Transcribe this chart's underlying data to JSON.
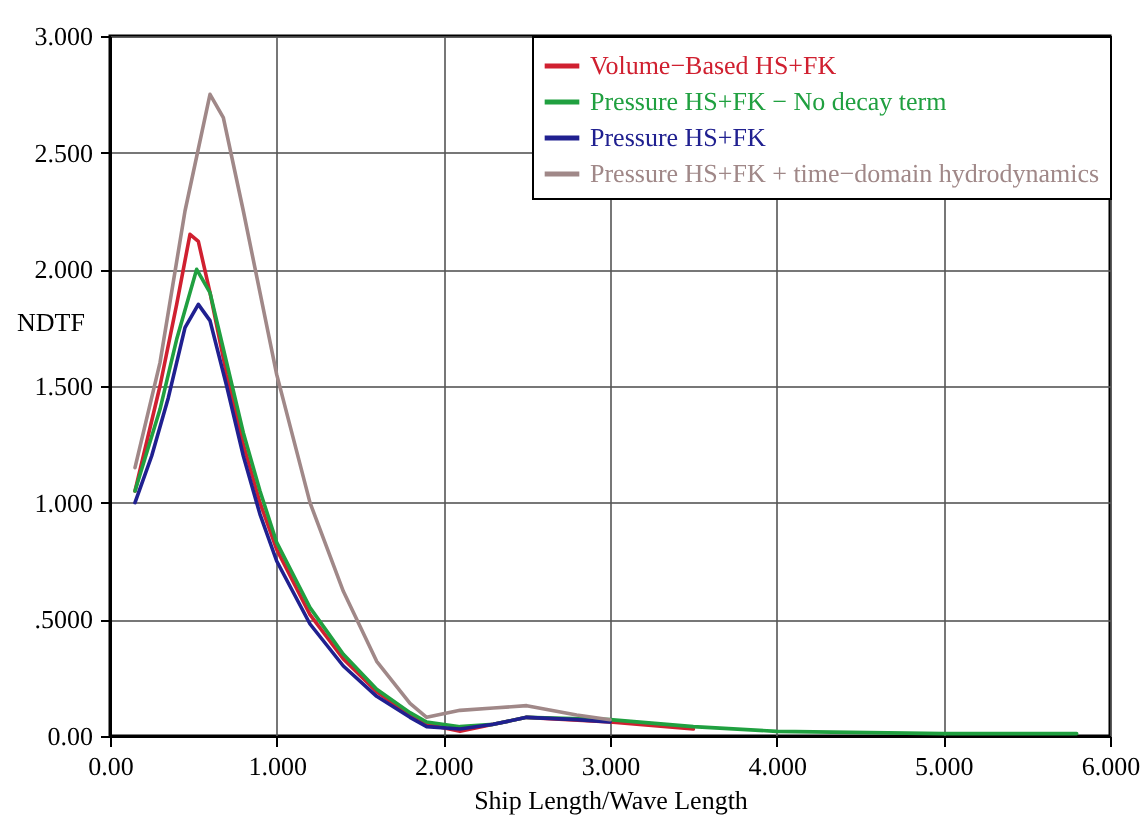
{
  "chart_data": {
    "type": "line",
    "xlabel": "Ship Length/Wave Length",
    "ylabel": "NDTF",
    "xlim": [
      0,
      6
    ],
    "xticks": [
      {
        "value": 0,
        "label": "0.00"
      },
      {
        "value": 1,
        "label": "1.000"
      },
      {
        "value": 2,
        "label": "2.000"
      },
      {
        "value": 3,
        "label": "3.000"
      },
      {
        "value": 4,
        "label": "4.000"
      },
      {
        "value": 5,
        "label": "5.000"
      },
      {
        "value": 6,
        "label": "6.000"
      }
    ],
    "ylim": [
      0,
      3
    ],
    "yticks": [
      {
        "value": 0,
        "label": "0.00"
      },
      {
        "value": 0.5,
        "label": ".5000"
      },
      {
        "value": 1,
        "label": "1.000"
      },
      {
        "value": 1.5,
        "label": "1.500"
      },
      {
        "value": 2,
        "label": "2.000"
      },
      {
        "value": 2.5,
        "label": "2.500"
      },
      {
        "value": 3,
        "label": "3.000"
      }
    ],
    "grid": true,
    "legend": "top right",
    "line_style": "solid",
    "series": [
      {
        "name": "Volume−Based HS+FK",
        "color": "#d02030",
        "x": [
          0.15,
          0.3,
          0.4,
          0.48,
          0.53,
          0.6,
          0.7,
          0.8,
          0.9,
          1.0,
          1.2,
          1.4,
          1.6,
          1.8,
          1.9,
          2.1,
          2.3,
          2.5,
          3.0,
          3.5
        ],
        "values": [
          1.05,
          1.5,
          1.85,
          2.15,
          2.12,
          1.9,
          1.55,
          1.25,
          1.0,
          0.8,
          0.52,
          0.33,
          0.19,
          0.09,
          0.05,
          0.02,
          0.05,
          0.08,
          0.06,
          0.03
        ]
      },
      {
        "name": "Pressure HS+FK − No decay term",
        "color": "#20a040",
        "x": [
          0.15,
          0.3,
          0.4,
          0.52,
          0.6,
          0.7,
          0.8,
          0.9,
          1.0,
          1.2,
          1.4,
          1.6,
          1.8,
          1.9,
          2.1,
          2.3,
          2.5,
          3.0,
          3.5,
          4.0,
          5.0,
          5.8
        ],
        "values": [
          1.05,
          1.4,
          1.7,
          2.0,
          1.9,
          1.6,
          1.3,
          1.05,
          0.83,
          0.55,
          0.35,
          0.2,
          0.1,
          0.06,
          0.04,
          0.05,
          0.08,
          0.07,
          0.04,
          0.02,
          0.01,
          0.01
        ]
      },
      {
        "name": "Pressure HS+FK",
        "color": "#202090",
        "x": [
          0.15,
          0.25,
          0.35,
          0.45,
          0.53,
          0.6,
          0.7,
          0.8,
          0.9,
          1.0,
          1.2,
          1.4,
          1.6,
          1.8,
          1.9,
          2.1,
          2.3,
          2.5,
          2.8,
          3.0
        ],
        "values": [
          1.0,
          1.2,
          1.45,
          1.75,
          1.85,
          1.78,
          1.5,
          1.2,
          0.95,
          0.75,
          0.48,
          0.3,
          0.17,
          0.08,
          0.04,
          0.03,
          0.05,
          0.08,
          0.07,
          0.06
        ]
      },
      {
        "name": "Pressure HS+FK + time−domain hydrodynamics",
        "color": "#a08888",
        "x": [
          0.15,
          0.3,
          0.45,
          0.6,
          0.68,
          0.8,
          0.9,
          1.0,
          1.2,
          1.4,
          1.6,
          1.8,
          1.9,
          2.1,
          2.3,
          2.5,
          2.8,
          3.0
        ],
        "values": [
          1.15,
          1.6,
          2.25,
          2.75,
          2.65,
          2.25,
          1.9,
          1.55,
          1.0,
          0.62,
          0.32,
          0.14,
          0.08,
          0.11,
          0.12,
          0.13,
          0.09,
          0.07
        ]
      }
    ]
  }
}
